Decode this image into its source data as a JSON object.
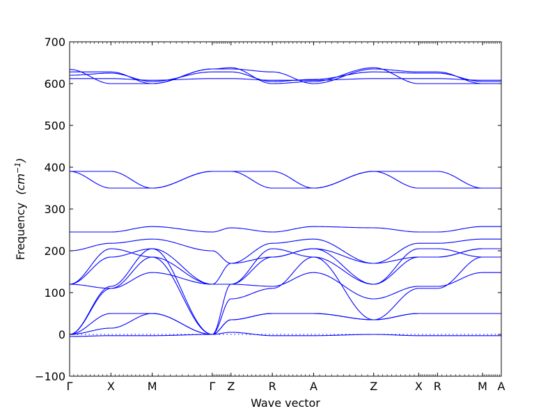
{
  "chart_data": {
    "type": "line",
    "title": "",
    "xlabel": "Wave vector",
    "ylabel": "Frequency",
    "ylabel_unit_html": "(cm<tspan baseline-shift=\"super\" font-size=\"11\">−1</tspan>)",
    "ylim": [
      -100,
      700
    ],
    "yticks": [
      -100,
      0,
      100,
      200,
      300,
      400,
      500,
      600,
      700
    ],
    "xlim": [
      0,
      11.5
    ],
    "kpoints": [
      {
        "label": "Γ",
        "x": 0
      },
      {
        "label": "X",
        "x": 1.1
      },
      {
        "label": "M",
        "x": 2.2
      },
      {
        "label": "Γ",
        "x": 3.8
      },
      {
        "label": "Z",
        "x": 4.3
      },
      {
        "label": "R",
        "x": 5.4
      },
      {
        "label": "A",
        "x": 6.5
      },
      {
        "label": "Z",
        "x": 8.1
      },
      {
        "label": "X",
        "x": 9.3
      },
      {
        "label": "R",
        "x": 9.8
      },
      {
        "label": "M",
        "x": 11.0
      },
      {
        "label": "A",
        "x": 11.5
      }
    ],
    "zero_line": true,
    "series_color": "#0000ff",
    "series": [
      {
        "values": [
          -5,
          -3,
          -3,
          0,
          5,
          -3,
          -3,
          0,
          -3,
          -3,
          -3,
          -3
        ]
      },
      {
        "values": [
          0,
          15,
          50,
          0,
          35,
          50,
          50,
          35,
          50,
          50,
          50,
          50
        ]
      },
      {
        "values": [
          0,
          50,
          50,
          0,
          35,
          50,
          50,
          35,
          50,
          50,
          50,
          50
        ]
      },
      {
        "values": [
          0,
          110,
          185,
          0,
          85,
          110,
          185,
          35,
          110,
          110,
          185,
          185
        ]
      },
      {
        "values": [
          0,
          115,
          205,
          0,
          120,
          185,
          205,
          120,
          185,
          185,
          205,
          205
        ]
      },
      {
        "values": [
          120,
          110,
          148,
          120,
          120,
          115,
          148,
          85,
          115,
          115,
          148,
          148
        ]
      },
      {
        "values": [
          120,
          185,
          205,
          120,
          120,
          205,
          185,
          120,
          205,
          205,
          185,
          185
        ]
      },
      {
        "values": [
          120,
          205,
          185,
          120,
          170,
          185,
          205,
          170,
          185,
          185,
          205,
          205
        ]
      },
      {
        "values": [
          200,
          218,
          228,
          200,
          170,
          218,
          228,
          170,
          218,
          218,
          228,
          228
        ]
      },
      {
        "values": [
          245,
          245,
          258,
          245,
          255,
          245,
          258,
          255,
          245,
          245,
          258,
          258
        ]
      },
      {
        "values": [
          390,
          390,
          350,
          390,
          390,
          390,
          350,
          390,
          390,
          390,
          350,
          350
        ]
      },
      {
        "values": [
          390,
          350,
          350,
          390,
          390,
          350,
          350,
          390,
          350,
          350,
          350,
          350
        ]
      },
      {
        "values": [
          612,
          612,
          608,
          612,
          612,
          608,
          608,
          612,
          612,
          612,
          608,
          608
        ]
      },
      {
        "values": [
          620,
          625,
          605,
          628,
          628,
          605,
          610,
          628,
          625,
          625,
          605,
          605
        ]
      },
      {
        "values": [
          628,
          628,
          600,
          635,
          635,
          628,
          600,
          635,
          628,
          628,
          600,
          600
        ]
      },
      {
        "values": [
          634,
          600,
          600,
          635,
          638,
          600,
          605,
          638,
          600,
          600,
          600,
          600
        ]
      }
    ]
  }
}
